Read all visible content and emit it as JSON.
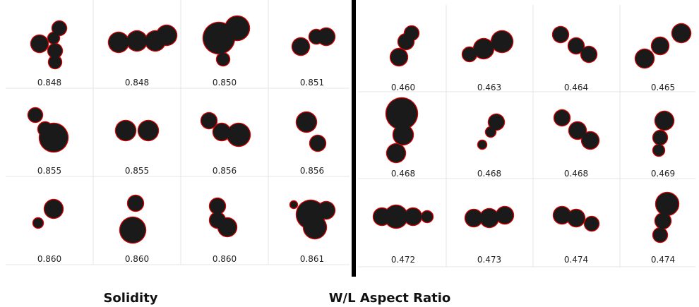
{
  "panels": [
    {
      "label": "Solidity",
      "values": [
        [
          "0.848",
          "0.848",
          "0.850",
          "0.851"
        ],
        [
          "0.855",
          "0.855",
          "0.856",
          "0.856"
        ],
        [
          "0.860",
          "0.860",
          "0.860",
          "0.861"
        ]
      ]
    },
    {
      "label": "W/L Aspect Ratio",
      "values": [
        [
          "0.460",
          "0.463",
          "0.464",
          "0.465"
        ],
        [
          "0.468",
          "0.468",
          "0.468",
          "0.469"
        ],
        [
          "0.472",
          "0.473",
          "0.474",
          "0.474"
        ]
      ]
    }
  ]
}
